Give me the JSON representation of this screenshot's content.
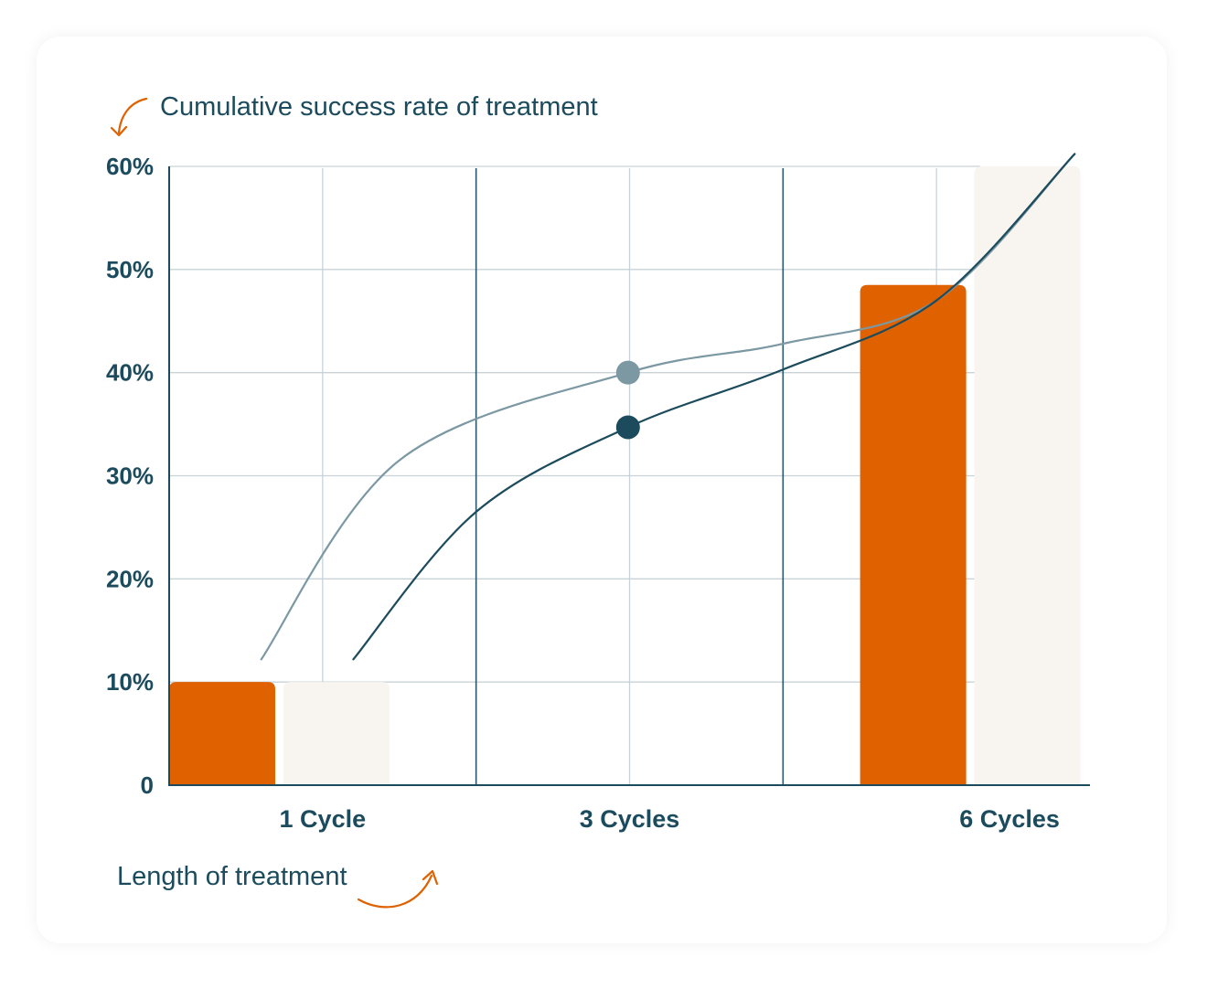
{
  "chart_data": {
    "type": "bar",
    "title": "",
    "ylabel": "Cumulative success rate of treatment",
    "xlabel": "Length of treatment",
    "ylim": [
      0,
      60
    ],
    "y_ticks": [
      {
        "value": 0,
        "label": "0"
      },
      {
        "value": 10,
        "label": "10%"
      },
      {
        "value": 20,
        "label": "20%"
      },
      {
        "value": 30,
        "label": "30%"
      },
      {
        "value": 40,
        "label": "40%"
      },
      {
        "value": 50,
        "label": "50%"
      },
      {
        "value": 60,
        "label": "60%"
      }
    ],
    "categories": [
      "1 Cycle",
      "3 Cycles",
      "6 Cycles"
    ],
    "bar_series": [
      {
        "color": "#e06100",
        "values": [
          10,
          null,
          48.5
        ]
      },
      {
        "color": "#f8f4ef",
        "values": [
          10,
          null,
          61
        ]
      }
    ],
    "line_series": [
      {
        "color": "#7b98a3",
        "points": [
          [
            0.6,
            12.2
          ],
          [
            1.5,
            31.5
          ],
          [
            2.99,
            40
          ],
          [
            4,
            42.8
          ],
          [
            5,
            47
          ],
          [
            5.9,
            61.2
          ]
        ]
      },
      {
        "color": "#1b4b5c",
        "points": [
          [
            1.2,
            12.2
          ],
          [
            2.0,
            26.5
          ],
          [
            2.99,
            34.7
          ],
          [
            4,
            40.3
          ],
          [
            5,
            47
          ],
          [
            5.9,
            61.2
          ]
        ]
      }
    ],
    "highlight_points": [
      {
        "x": 2.99,
        "y": 40,
        "color": "#7b98a3"
      },
      {
        "x": 2.99,
        "y": 34.7,
        "color": "#1b4b5c"
      }
    ],
    "grid": true,
    "legend": "none"
  }
}
